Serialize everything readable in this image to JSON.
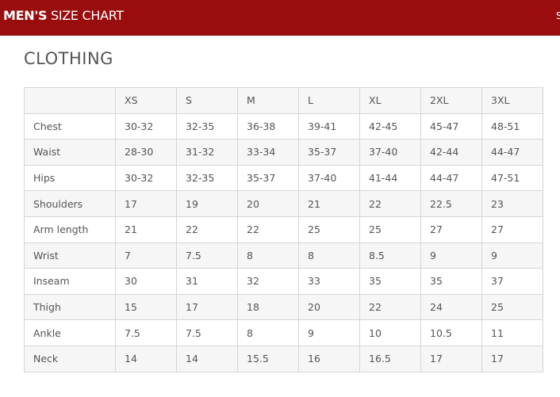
{
  "header": {
    "title_bold": "MEN'S",
    "title_rest": "SIZE CHART",
    "cut_text": "S"
  },
  "section_title": "CLOTHING",
  "table": {
    "columns": [
      "XS",
      "S",
      "M",
      "L",
      "XL",
      "2XL",
      "3XL"
    ],
    "rows": [
      [
        "Chest",
        "30-32",
        "32-35",
        "36-38",
        "39-41",
        "42-45",
        "45-47",
        "48-51"
      ],
      [
        "Waist",
        "28-30",
        "31-32",
        "33-34",
        "35-37",
        "37-40",
        "42-44",
        "44-47"
      ],
      [
        "Hips",
        "30-32",
        "32-35",
        "35-37",
        "37-40",
        "41-44",
        "44-47",
        "47-51"
      ],
      [
        "Shoulders",
        "17",
        "19",
        "20",
        "21",
        "22",
        "22.5",
        "23"
      ],
      [
        "Arm length",
        "21",
        "22",
        "22",
        "25",
        "25",
        "27",
        "27"
      ],
      [
        "Wrist",
        "7",
        "7.5",
        "8",
        "8",
        "8.5",
        "9",
        "9"
      ],
      [
        "Inseam",
        "30",
        "31",
        "32",
        "33",
        "35",
        "35",
        "37"
      ],
      [
        "Thigh",
        "15",
        "17",
        "18",
        "20",
        "22",
        "24",
        "25"
      ],
      [
        "Ankle",
        "7.5",
        "7.5",
        "8",
        "9",
        "10",
        "10.5",
        "11"
      ],
      [
        "Neck",
        "14",
        "14",
        "15.5",
        "16",
        "16.5",
        "17",
        "17"
      ]
    ]
  }
}
